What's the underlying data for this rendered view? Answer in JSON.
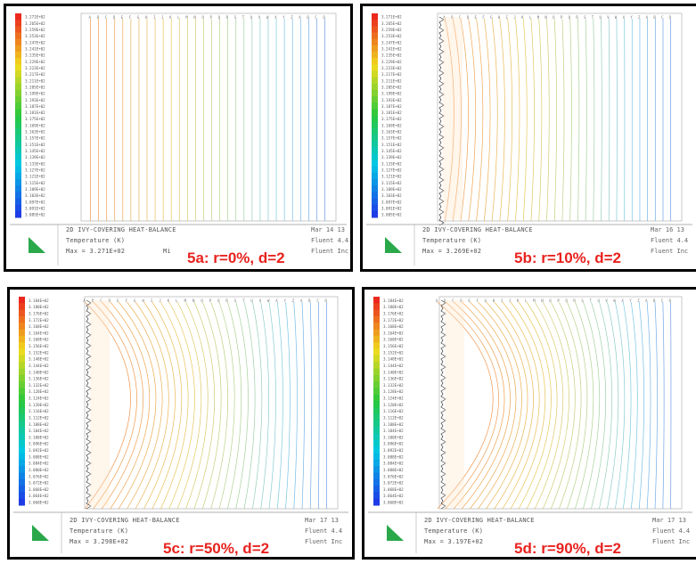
{
  "panels": [
    {
      "id": "5a",
      "caption": "5a: r=0%, d=2",
      "title": "2D IVY-COVERING HEAT-BALANCE",
      "quantity": "Temperature (K)",
      "max_line": "Max = 3.271E+02",
      "max_suffix": "Mi",
      "right_top": "Mar 14 13",
      "right_mid": "Fluent 4.4",
      "right_bot": "Fluent Inc",
      "legend_ticks": [
        "3.271E+02",
        "3.265E+02",
        "3.259E+02",
        "3.253E+02",
        "3.247E+02",
        "3.241E+02",
        "3.235E+02",
        "3.229E+02",
        "3.223E+02",
        "3.217E+02",
        "3.211E+02",
        "3.205E+02",
        "3.199E+02",
        "3.193E+02",
        "3.187E+02",
        "3.181E+02",
        "3.175E+02",
        "3.169E+02",
        "3.163E+02",
        "3.157E+02",
        "3.151E+02",
        "3.145E+02",
        "3.139E+02",
        "3.133E+02",
        "3.127E+02",
        "3.121E+02",
        "3.115E+02",
        "3.109E+02",
        "3.103E+02",
        "3.097E+02",
        "3.091E+02",
        "3.085E+02"
      ],
      "contour_style": "vertical"
    },
    {
      "id": "5b",
      "caption": "5b: r=10%,  d=2",
      "title": "2D IVY-COVERING HEAT-BALANCE",
      "quantity": "Temperature (K)",
      "max_line": "Max = 3.269E+02",
      "max_suffix": "",
      "right_top": "Mar 16 13",
      "right_mid": "Fluent 4.4",
      "right_bot": "Fluent Inc",
      "legend_ticks": [
        "3.271E+02",
        "3.265E+02",
        "3.259E+02",
        "3.253E+02",
        "3.247E+02",
        "3.241E+02",
        "3.235E+02",
        "3.229E+02",
        "3.223E+02",
        "3.217E+02",
        "3.211E+02",
        "3.205E+02",
        "3.199E+02",
        "3.193E+02",
        "3.187E+02",
        "3.181E+02",
        "3.175E+02",
        "3.169E+02",
        "3.163E+02",
        "3.157E+02",
        "3.151E+02",
        "3.145E+02",
        "3.139E+02",
        "3.133E+02",
        "3.127E+02",
        "3.121E+02",
        "3.115E+02",
        "3.109E+02",
        "3.103E+02",
        "3.097E+02",
        "3.091E+02",
        "3.085E+02"
      ],
      "contour_style": "slight"
    },
    {
      "id": "5c",
      "caption": "5c: r=50%,  d=2",
      "title": "2D IVY-COVERING HEAT-BALANCE",
      "quantity": "Temperature (K)",
      "max_line": "Max = 3.298E+02",
      "max_suffix": "",
      "right_top": "Mar 17 13",
      "right_mid": "Fluent 4.4",
      "right_bot": "Fluent Inc",
      "legend_ticks": [
        "3.184E+02",
        "3.180E+02",
        "3.176E+02",
        "3.172E+02",
        "3.168E+02",
        "3.164E+02",
        "3.160E+02",
        "3.156E+02",
        "3.152E+02",
        "3.148E+02",
        "3.144E+02",
        "3.140E+02",
        "3.136E+02",
        "3.132E+02",
        "3.128E+02",
        "3.124E+02",
        "3.120E+02",
        "3.116E+02",
        "3.112E+02",
        "3.108E+02",
        "3.104E+02",
        "3.100E+02",
        "3.096E+02",
        "3.092E+02",
        "3.088E+02",
        "3.084E+02",
        "3.080E+02",
        "3.076E+02",
        "3.072E+02",
        "3.068E+02",
        "3.064E+02",
        "3.060E+02"
      ],
      "contour_style": "curved"
    },
    {
      "id": "5d",
      "caption": "5d: r=90%,  d=2",
      "title": "2D IVY-COVERING HEAT-BALANCE",
      "quantity": "Temperature (K)",
      "max_line": "Max = 3.197E+02",
      "max_suffix": "",
      "right_top": "Mar 17 13",
      "right_mid": "Fluent 4.4",
      "right_bot": "Fluent Inc",
      "legend_ticks": [
        "3.184E+02",
        "3.180E+02",
        "3.176E+02",
        "3.172E+02",
        "3.168E+02",
        "3.164E+02",
        "3.160E+02",
        "3.156E+02",
        "3.152E+02",
        "3.148E+02",
        "3.144E+02",
        "3.140E+02",
        "3.136E+02",
        "3.132E+02",
        "3.128E+02",
        "3.124E+02",
        "3.120E+02",
        "3.116E+02",
        "3.112E+02",
        "3.108E+02",
        "3.104E+02",
        "3.100E+02",
        "3.096E+02",
        "3.092E+02",
        "3.088E+02",
        "3.084E+02",
        "3.080E+02",
        "3.076E+02",
        "3.072E+02",
        "3.068E+02",
        "3.064E+02",
        "3.060E+02"
      ],
      "contour_style": "strong"
    }
  ],
  "colors": {
    "caption": "#e8231f",
    "frame": "#000000",
    "logo": "#2aa84a"
  }
}
